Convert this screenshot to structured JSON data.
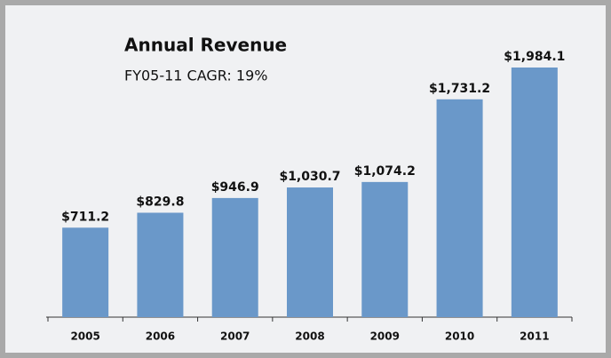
{
  "chart_data": {
    "type": "bar",
    "title": "Annual Revenue",
    "subtitle": "FY05-11 CAGR: 19%",
    "categories": [
      "2005",
      "2006",
      "2007",
      "2008",
      "2009",
      "2010",
      "2011"
    ],
    "values": [
      711.2,
      829.8,
      946.9,
      1030.7,
      1074.2,
      1731.2,
      1984.1
    ],
    "value_labels": [
      "$711.2",
      "$829.8",
      "$946.9",
      "$1,030.7",
      "$1,074.2",
      "$1,731.2",
      "$1,984.1"
    ],
    "color": "#6a98c9"
  }
}
